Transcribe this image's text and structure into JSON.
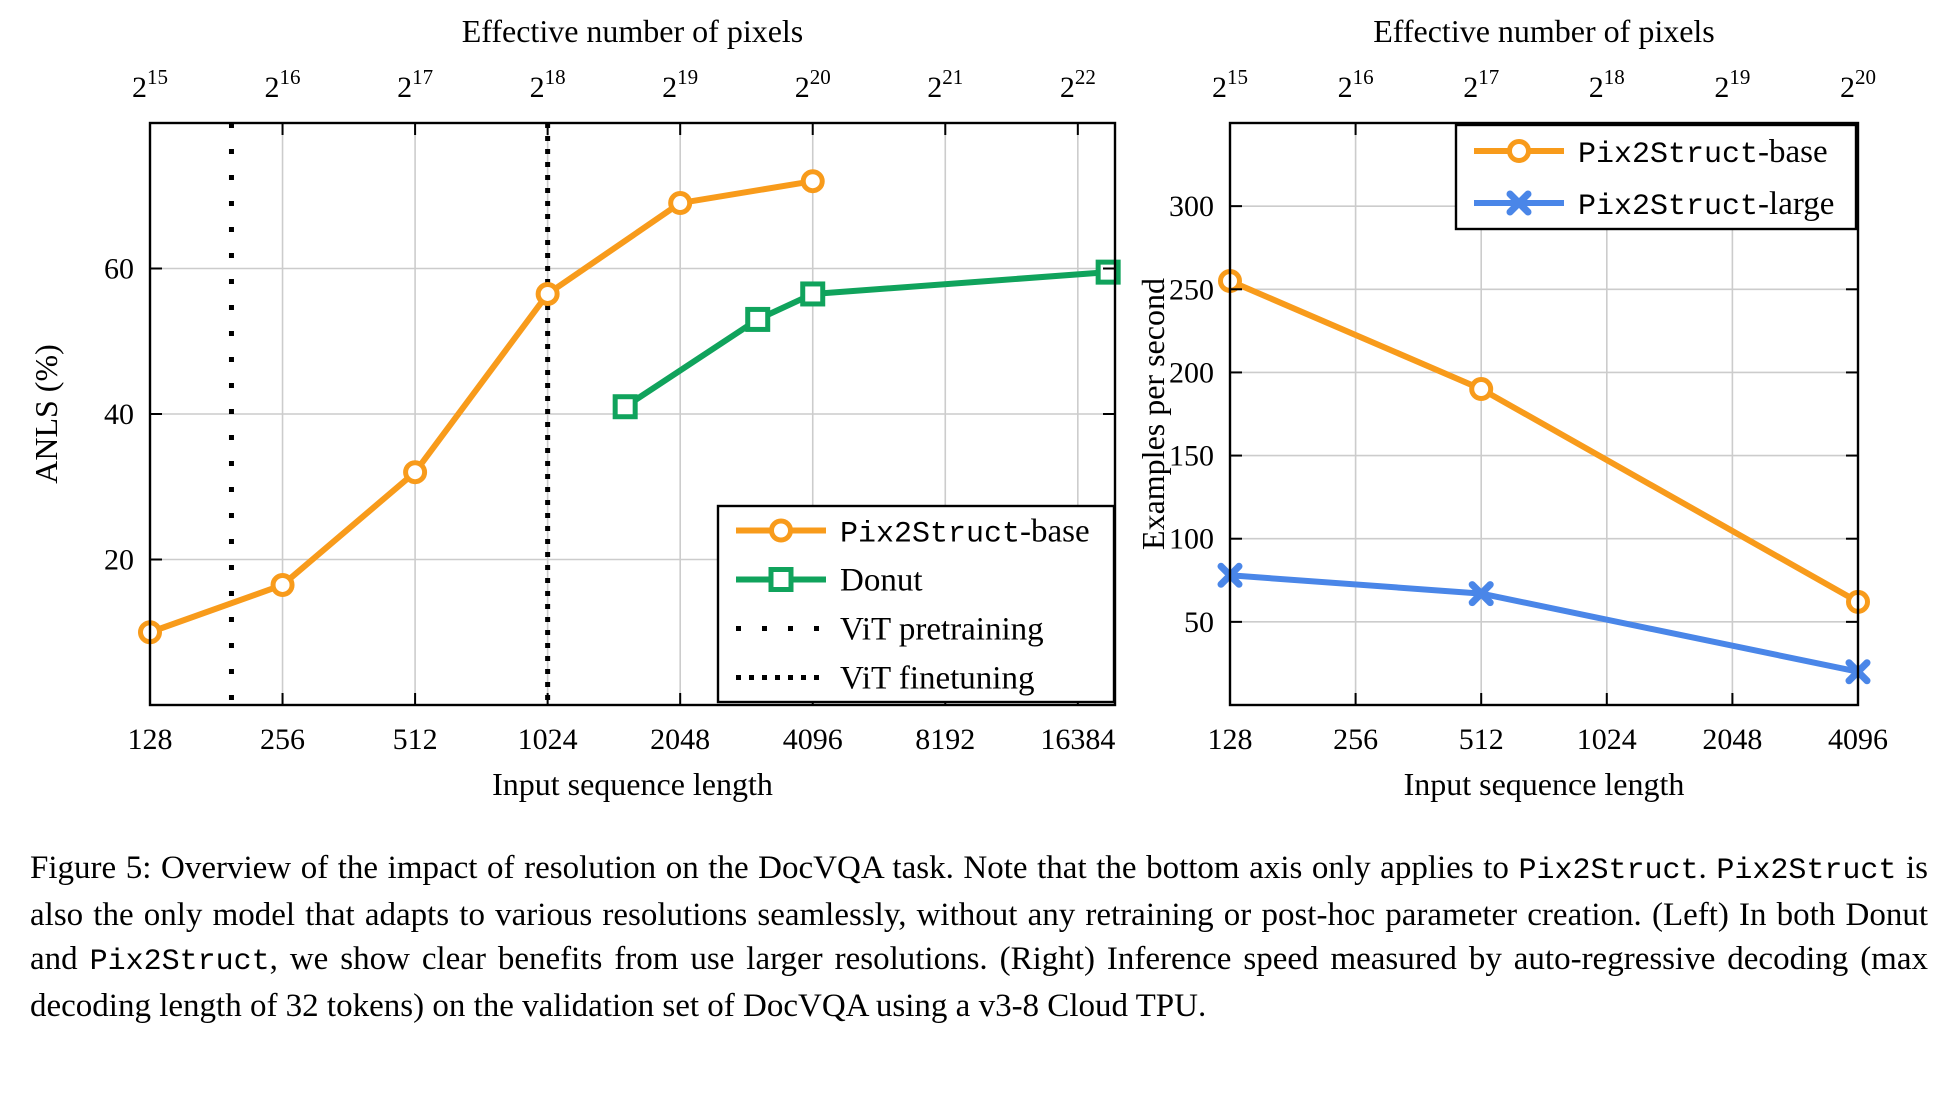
{
  "figure": {
    "caption_segments": [
      {
        "text": "Figure 5:  Overview of the impact of resolution on the DocVQA task.  Note that the bottom axis only applies to ",
        "mono": false
      },
      {
        "text": "Pix2Struct",
        "mono": true
      },
      {
        "text": ". ",
        "mono": false
      },
      {
        "text": "Pix2Struct",
        "mono": true
      },
      {
        "text": " is also the only model that adapts to various resolutions seamlessly, without any retraining or post-hoc parameter creation.  (Left) In both Donut and ",
        "mono": false
      },
      {
        "text": "Pix2Struct",
        "mono": true
      },
      {
        "text": ", we show clear benefits from use larger resolutions. (Right) Inference speed measured by auto-regressive decoding (max decoding length of 32 tokens) on the validation set of DocVQA using a v3-8 Cloud TPU.",
        "mono": false
      }
    ]
  },
  "colors": {
    "orange": "#F89B1B",
    "green": "#10A35C",
    "blue": "#4A86E8",
    "grid": "#CCCCCC",
    "axis": "#000000",
    "background": "#FFFFFF"
  },
  "chart_data": [
    {
      "id": "left",
      "type": "line",
      "top_axis_title": "Effective number of pixels",
      "xlabel": "Input sequence length",
      "ylabel": "ANLS (%)",
      "x_scale": "log2",
      "xlim": [
        128,
        19900
      ],
      "ylim": [
        0,
        80
      ],
      "x_ticks": [
        128,
        256,
        512,
        1024,
        2048,
        4096,
        8192,
        16384
      ],
      "y_ticks": [
        20,
        40,
        60
      ],
      "top_tick_exponents": [
        15,
        16,
        17,
        18,
        19,
        20,
        21,
        22
      ],
      "top_tick_base": "2",
      "grid": true,
      "series": [
        {
          "name": "Pix2Struct-base",
          "label_segments": [
            {
              "text": "Pix2Struct",
              "mono": true
            },
            {
              "text": "-base",
              "mono": false
            }
          ],
          "color_key": "orange",
          "marker": "circle",
          "points": [
            [
              128,
              10
            ],
            [
              256,
              16.5
            ],
            [
              512,
              32
            ],
            [
              1024,
              56.5
            ],
            [
              2048,
              69
            ],
            [
              4096,
              72
            ]
          ]
        },
        {
          "name": "Donut",
          "label_segments": [
            {
              "text": "Donut",
              "mono": false
            }
          ],
          "color_key": "green",
          "marker": "square",
          "points": [
            [
              1536,
              41
            ],
            [
              3072,
              53
            ],
            [
              4096,
              56.5
            ],
            [
              19200,
              59.5
            ]
          ]
        }
      ],
      "vlines": [
        {
          "name": "ViT pretraining",
          "label_segments": [
            {
              "text": "ViT pretraining",
              "mono": false
            }
          ],
          "x": 196,
          "style": "sparse"
        },
        {
          "name": "ViT finetuning",
          "label_segments": [
            {
              "text": "ViT finetuning",
              "mono": false
            }
          ],
          "x": 1024,
          "style": "dense"
        }
      ],
      "legend_entries": [
        {
          "kind": "series",
          "index": 0
        },
        {
          "kind": "series",
          "index": 1
        },
        {
          "kind": "vline",
          "index": 0
        },
        {
          "kind": "vline",
          "index": 1
        }
      ]
    },
    {
      "id": "right",
      "type": "line",
      "top_axis_title": "Effective number of pixels",
      "xlabel": "Input sequence length",
      "ylabel": "Examples per second",
      "x_scale": "log2",
      "xlim": [
        128,
        4096
      ],
      "ylim": [
        0,
        350
      ],
      "x_ticks": [
        128,
        256,
        512,
        1024,
        2048,
        4096
      ],
      "y_ticks": [
        50,
        100,
        150,
        200,
        250,
        300
      ],
      "top_tick_exponents": [
        15,
        16,
        17,
        18,
        19,
        20
      ],
      "top_tick_base": "2",
      "grid": true,
      "series": [
        {
          "name": "Pix2Struct-base",
          "label_segments": [
            {
              "text": "Pix2Struct",
              "mono": true
            },
            {
              "text": "-base",
              "mono": false
            }
          ],
          "color_key": "orange",
          "marker": "circle",
          "points": [
            [
              128,
              255
            ],
            [
              512,
              190
            ],
            [
              4096,
              62
            ]
          ]
        },
        {
          "name": "Pix2Struct-large",
          "label_segments": [
            {
              "text": "Pix2Struct",
              "mono": true
            },
            {
              "text": "-large",
              "mono": false
            }
          ],
          "color_key": "blue",
          "marker": "x",
          "points": [
            [
              128,
              78
            ],
            [
              512,
              67
            ],
            [
              4096,
              20
            ]
          ]
        }
      ],
      "vlines": [],
      "legend_entries": [
        {
          "kind": "series",
          "index": 0
        },
        {
          "kind": "series",
          "index": 1
        }
      ]
    }
  ]
}
